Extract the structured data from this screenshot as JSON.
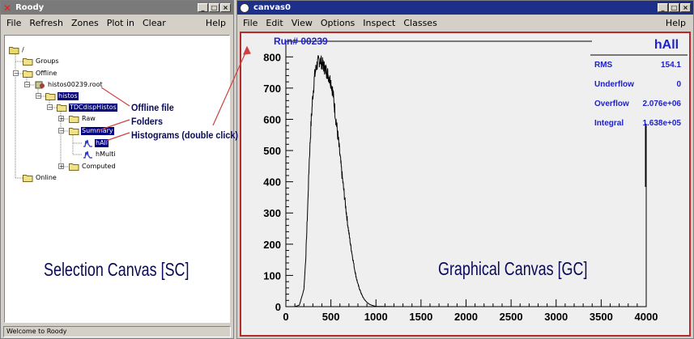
{
  "roody": {
    "title": "Roody",
    "menu": [
      "File",
      "Refresh",
      "Zones",
      "Plot in",
      "Clear"
    ],
    "help": "Help",
    "status": "Welcome to Roody",
    "tree": {
      "root": "/",
      "groups": "Groups",
      "offline": "Offline",
      "file": "histos00239.root",
      "histos": "histos",
      "tdc": "TDCdispHistos",
      "raw": "Raw",
      "summary": "Summary",
      "hall": "hAll",
      "hmulti": "hMulti",
      "computed": "Computed",
      "online": "Online"
    },
    "annotations": {
      "offline_file": "Offline file",
      "folders": "Folders",
      "histograms": "Histograms (double click)"
    },
    "selection_canvas_label": "Selection Canvas [SC]"
  },
  "canvas": {
    "title": "canvas0",
    "menu": [
      "File",
      "Edit",
      "View",
      "Options",
      "Inspect",
      "Classes"
    ],
    "help": "Help",
    "graphical_canvas_label": "Graphical Canvas [GC]"
  },
  "colors": {
    "canvas_title_bar": "#1c2f8a",
    "stats_text": "#1e22c8",
    "canvas_border": "#b52b2b"
  },
  "chart_data": {
    "type": "line",
    "title": "hAll",
    "run_label": "Run# 00239",
    "xlim": [
      0,
      4000
    ],
    "ylim": [
      0,
      850
    ],
    "x_ticks": [
      0,
      500,
      1000,
      1500,
      2000,
      2500,
      3000,
      3500,
      4000
    ],
    "y_ticks": [
      0,
      100,
      200,
      300,
      400,
      500,
      600,
      700,
      800
    ],
    "series": [
      {
        "x": [
          100,
          150,
          200,
          220,
          240,
          260,
          280,
          300,
          320,
          340,
          360,
          380,
          400,
          420,
          440,
          460,
          480,
          500,
          520,
          540,
          560,
          580,
          600,
          620,
          640,
          660,
          680,
          700,
          720,
          740,
          760,
          780,
          800,
          820,
          840,
          860,
          880,
          900,
          920,
          940,
          960,
          980,
          1000,
          1050,
          1100,
          1150,
          1200,
          1300,
          1500
        ],
        "values": [
          0,
          5,
          55,
          150,
          300,
          470,
          590,
          680,
          740,
          770,
          785,
          790,
          780,
          770,
          760,
          750,
          735,
          720,
          690,
          640,
          590,
          540,
          485,
          430,
          380,
          330,
          280,
          235,
          195,
          160,
          125,
          95,
          72,
          55,
          40,
          28,
          20,
          14,
          9,
          6,
          4,
          2,
          1,
          0.6,
          0.3,
          0.2,
          0.1,
          0,
          0
        ]
      }
    ],
    "stats": [
      {
        "label": "RMS",
        "value": "154.1"
      },
      {
        "label": "Underflow",
        "value": "0"
      },
      {
        "label": "Overflow",
        "value": "2.076e+06"
      },
      {
        "label": "Integral",
        "value": "1.638e+05"
      }
    ]
  }
}
